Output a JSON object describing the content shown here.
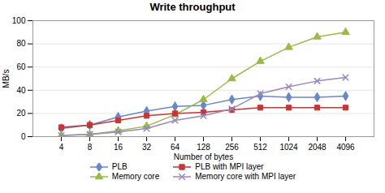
{
  "chart_data": {
    "type": "line",
    "title": "Write throughput",
    "xlabel": "Number of bytes",
    "ylabel": "MB/s",
    "x": [
      4,
      8,
      16,
      32,
      64,
      128,
      256,
      512,
      1024,
      2048,
      4096
    ],
    "series": [
      {
        "name": "PLB",
        "color": "#6688cc",
        "marker": "diamond",
        "values": [
          7,
          10,
          17,
          22,
          26,
          27,
          32,
          35,
          34,
          34,
          35
        ]
      },
      {
        "name": "Memory core",
        "color": "#99bb44",
        "marker": "triangle",
        "values": [
          1,
          2,
          5,
          9,
          19,
          32,
          50,
          65,
          77,
          86,
          90
        ]
      },
      {
        "name": "PLB with MPI layer",
        "color": "#cc3333",
        "marker": "square",
        "values": [
          8,
          10,
          14,
          18,
          20,
          21,
          23,
          25,
          25,
          25,
          25
        ]
      },
      {
        "name": "Memory core with MPI layer",
        "color": "#9988bb",
        "marker": "times",
        "values": [
          1,
          2,
          4,
          7,
          14,
          18,
          24,
          37,
          43,
          48,
          51
        ]
      }
    ],
    "log": "x",
    "xlim": [
      2,
      8192
    ],
    "xticks": [
      4,
      8,
      16,
      32,
      64,
      128,
      256,
      512,
      1024,
      2048,
      4096
    ],
    "ylim": [
      0,
      100
    ],
    "yticks": [
      0,
      20,
      40,
      60,
      80,
      100
    ],
    "grid": true,
    "legend": "bottom"
  }
}
